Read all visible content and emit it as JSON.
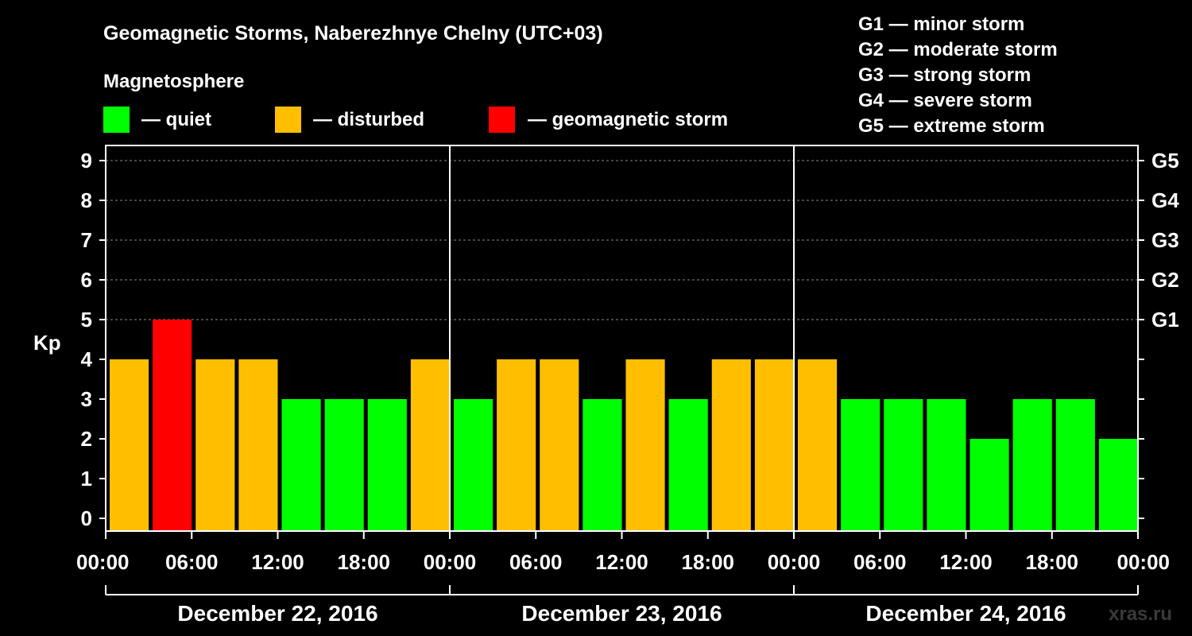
{
  "chart_data": {
    "type": "bar",
    "title": "Geomagnetic Storms, Naberezhnye Chelny (UTC+03)",
    "subtitle": "Magnetosphere",
    "ylabel": "Kp",
    "ylim": [
      0,
      9.4
    ],
    "yticks": [
      "0",
      "1",
      "2",
      "3",
      "4",
      "5",
      "6",
      "7",
      "8",
      "9"
    ],
    "grid": "dashed horizontal lines at Kp 5–9",
    "legend": {
      "placement": "top-left",
      "items": [
        {
          "label": "— quiet",
          "color": "#00ff00"
        },
        {
          "label": "— disturbed",
          "color": "#ffbf00"
        },
        {
          "label": "— geomagnetic storm",
          "color": "#ff0000"
        }
      ]
    },
    "storm_scale": {
      "placement": "top-right",
      "items": [
        "G1 — minor storm",
        "G2 — moderate storm",
        "G3 — strong storm",
        "G4 — severe storm",
        "G5 — extreme storm"
      ]
    },
    "right_axis": [
      {
        "label": "G1",
        "kp": 5
      },
      {
        "label": "G2",
        "kp": 6
      },
      {
        "label": "G3",
        "kp": 7
      },
      {
        "label": "G4",
        "kp": 8
      },
      {
        "label": "G5",
        "kp": 9
      }
    ],
    "xticks": [
      "00:00",
      "06:00",
      "12:00",
      "18:00",
      "00:00",
      "06:00",
      "12:00",
      "18:00",
      "00:00",
      "06:00",
      "12:00",
      "18:00",
      "00:00"
    ],
    "days": [
      "December 22, 2016",
      "December 23, 2016",
      "December 24, 2016"
    ],
    "colors": {
      "quiet": "#00ff00",
      "disturbed": "#ffbf00",
      "storm": "#ff0000"
    },
    "values": [
      4,
      5,
      4,
      4,
      3,
      3,
      3,
      4,
      3,
      4,
      4,
      3,
      4,
      3,
      4,
      4,
      4,
      3,
      3,
      3,
      2,
      3,
      3,
      2
    ],
    "status": [
      "disturbed",
      "storm",
      "disturbed",
      "disturbed",
      "quiet",
      "quiet",
      "quiet",
      "disturbed",
      "quiet",
      "disturbed",
      "disturbed",
      "quiet",
      "disturbed",
      "quiet",
      "disturbed",
      "disturbed",
      "disturbed",
      "quiet",
      "quiet",
      "quiet",
      "quiet",
      "quiet",
      "quiet",
      "quiet"
    ],
    "watermark": "xras.ru"
  }
}
